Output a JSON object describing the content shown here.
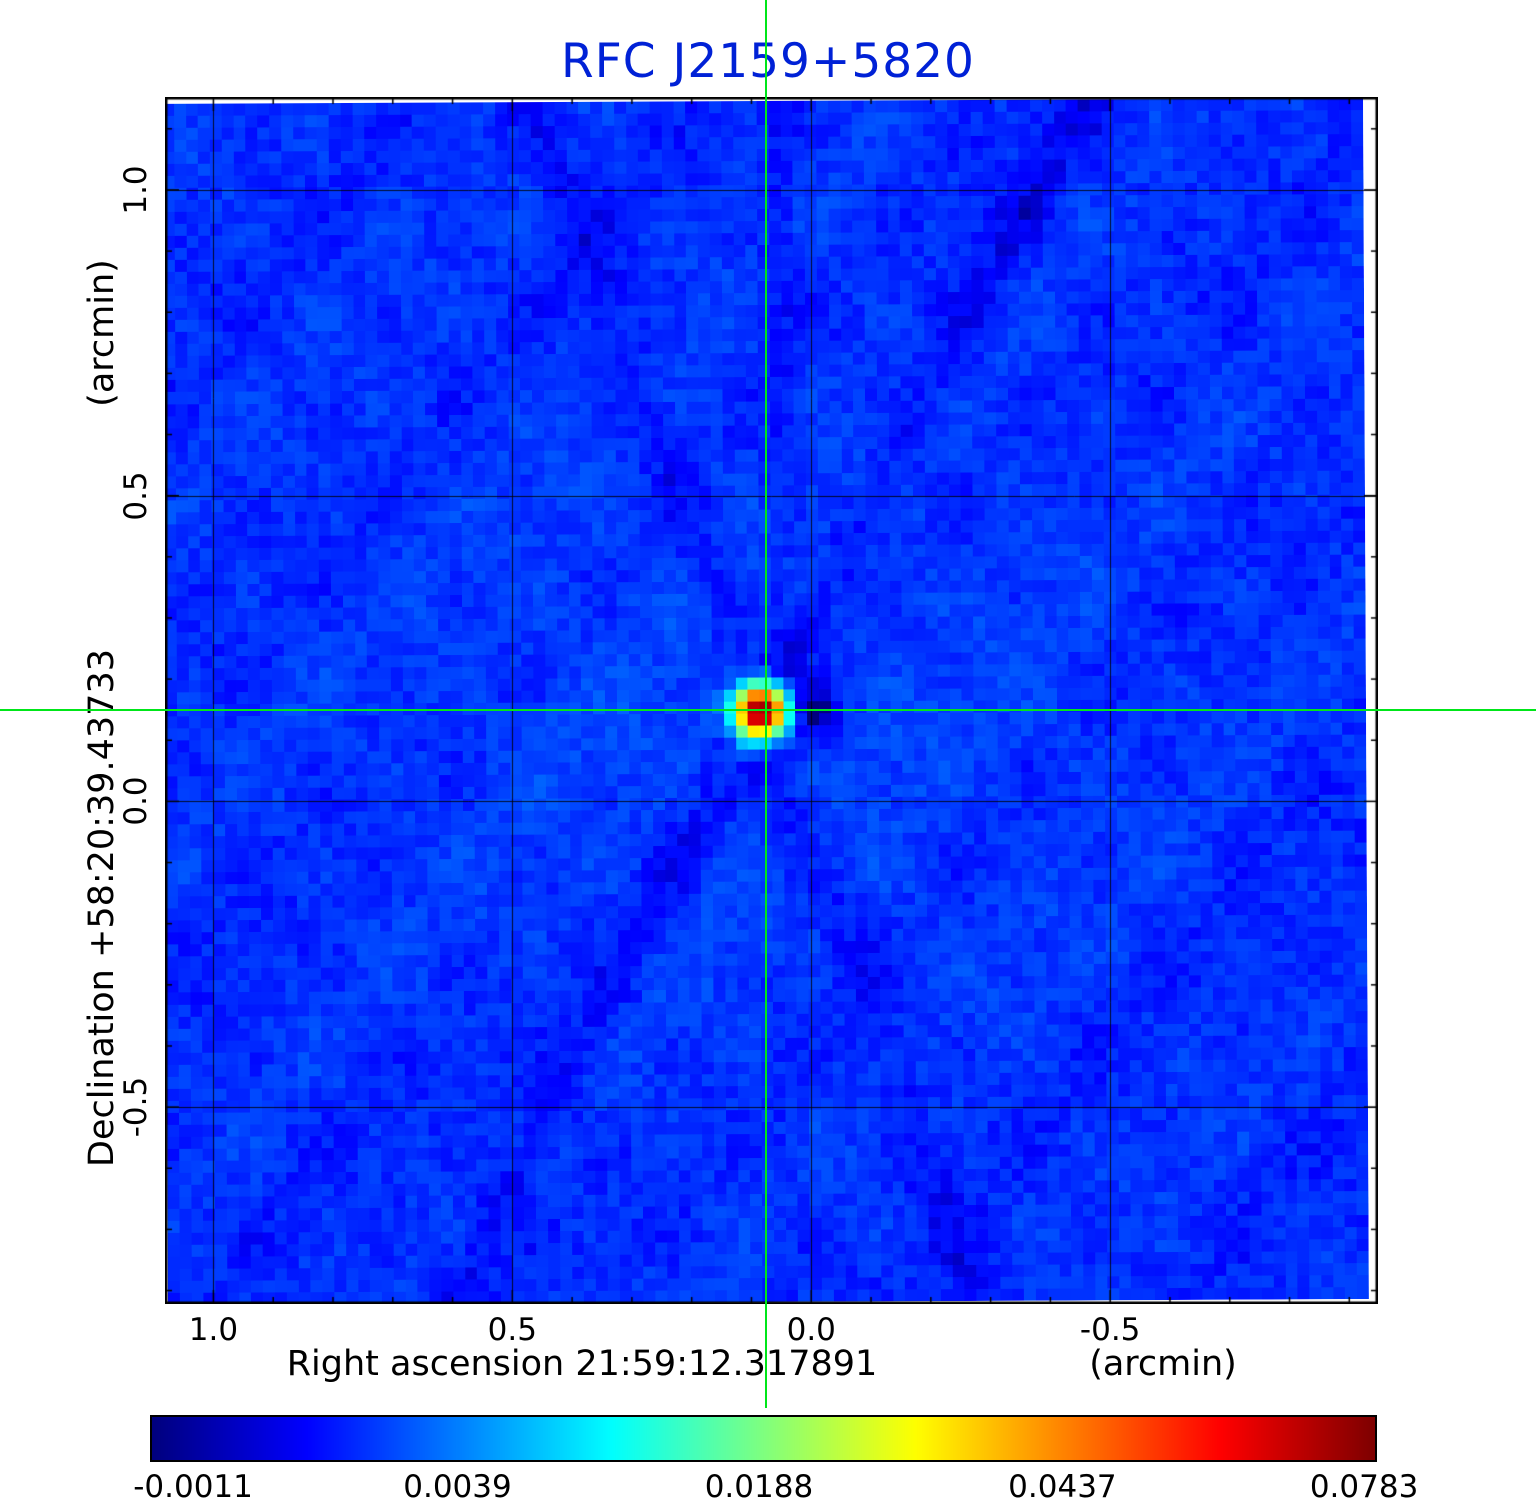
{
  "title": "RFC J2159+5820",
  "colors": {
    "title": "#0021d6",
    "crosshair": "#00e619",
    "axis_text": "#000000",
    "frame": "#000000"
  },
  "axes": {
    "x_label": "Right ascension  21:59:12.317891",
    "x_unit": "(arcmin)",
    "y_label": "Declination  +58:20:39.43733",
    "y_unit": "(arcmin)",
    "x_tick_labels": [
      "1.0",
      "0.5",
      "0.0",
      "-0.5"
    ],
    "x_tick_values": [
      1.0,
      0.5,
      0.0,
      -0.5
    ],
    "y_tick_labels": [
      "1.0",
      "0.5",
      "0.0",
      "-0.5"
    ],
    "y_tick_values": [
      1.0,
      0.5,
      0.0,
      -0.5
    ]
  },
  "colorbar": {
    "tick_labels": [
      "-0.0011",
      "0.0039",
      "0.0188",
      "0.0437",
      "0.0783"
    ],
    "tick_values": [
      -0.0011,
      0.0039,
      0.0188,
      0.0437,
      0.0783
    ],
    "vmin": -0.0012,
    "vmax": 0.08,
    "scale": "sqrt",
    "colormap": "jet"
  },
  "chart_data": {
    "type": "heatmap",
    "title": "RFC J2159+5820",
    "xlabel": "Right ascension 21:59:12.317891 (arcmin)",
    "ylabel": "Declination +58:20:39.43733 (arcmin)",
    "x_range": [
      1.081,
      -0.948
    ],
    "y_range": [
      -0.822,
      1.152
    ],
    "grid": true,
    "grid_ticks_x": [
      1.0,
      0.5,
      0.0,
      -0.5
    ],
    "grid_ticks_y": [
      1.0,
      0.5,
      0.0,
      -0.5
    ],
    "minor_tick_step": 0.1,
    "colormap": "jet",
    "scale": "sqrt",
    "vmin": -0.0012,
    "vmax": 0.08,
    "background_level": 0.0011,
    "source": {
      "x_arcmin": 0.075,
      "y_arcmin": 0.149,
      "peak_flux": 0.0783,
      "description": "compact point source: dark-red peak pixel, orange/yellow core, cyan halo, dark negative sidelobe just west-right of core, faint diagonal sidelobe streaks crossing the field"
    },
    "crosshair": {
      "x_arcmin": 0.075,
      "y_arcmin": 0.149
    }
  }
}
